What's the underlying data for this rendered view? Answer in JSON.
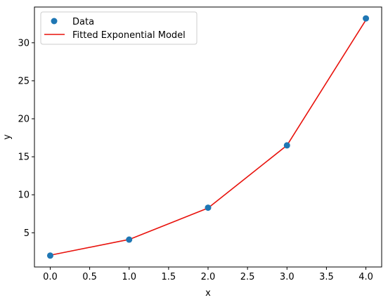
{
  "chart_data": {
    "type": "scatter",
    "title": "",
    "xlabel": "x",
    "ylabel": "y",
    "xlim": [
      -0.2,
      4.2
    ],
    "ylim": [
      0.5,
      34.7
    ],
    "xticks": [
      0.0,
      0.5,
      1.0,
      1.5,
      2.0,
      2.5,
      3.0,
      3.5,
      4.0
    ],
    "xtick_labels": [
      "0.0",
      "0.5",
      "1.0",
      "1.5",
      "2.0",
      "2.5",
      "3.0",
      "3.5",
      "4.0"
    ],
    "yticks": [
      5,
      10,
      15,
      20,
      25,
      30
    ],
    "ytick_labels": [
      "5",
      "10",
      "15",
      "20",
      "25",
      "30"
    ],
    "grid": false,
    "legend_position": "top-left",
    "series": [
      {
        "name": "Data",
        "type": "scatter",
        "color": "#1f77b4",
        "x": [
          0,
          1,
          2,
          3,
          4
        ],
        "y": [
          2.0,
          4.1,
          8.3,
          16.5,
          33.2
        ]
      },
      {
        "name": "Fitted Exponential Model",
        "type": "line",
        "color": "#e8120c",
        "x": [
          0,
          1,
          2,
          3,
          4
        ],
        "y": [
          2.05,
          4.12,
          8.25,
          16.5,
          33.0
        ]
      }
    ]
  }
}
